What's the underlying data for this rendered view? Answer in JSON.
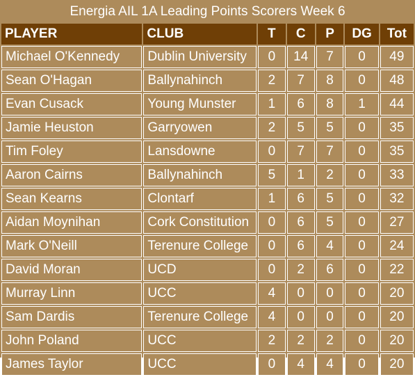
{
  "title": "Energia AIL 1A Leading Points Scorers Week 6",
  "headers": {
    "player": "PLAYER",
    "club": "CLUB",
    "t": "T",
    "c": "C",
    "p": "P",
    "dg": "DG",
    "tot": "Tot"
  },
  "rows": [
    {
      "player": "Michael O'Kennedy",
      "club": "Dublin University",
      "t": "0",
      "c": "14",
      "p": "7",
      "dg": "0",
      "tot": "49"
    },
    {
      "player": "Sean O'Hagan",
      "club": "Ballynahinch",
      "t": "2",
      "c": "7",
      "p": "8",
      "dg": "0",
      "tot": "48"
    },
    {
      "player": "Evan Cusack",
      "club": "Young Munster",
      "t": "1",
      "c": "6",
      "p": "8",
      "dg": "1",
      "tot": "44"
    },
    {
      "player": "Jamie Heuston",
      "club": "Garryowen",
      "t": "2",
      "c": "5",
      "p": "5",
      "dg": "0",
      "tot": "35"
    },
    {
      "player": "Tim Foley",
      "club": "Lansdowne",
      "t": "0",
      "c": "7",
      "p": "7",
      "dg": "0",
      "tot": "35"
    },
    {
      "player": "Aaron Cairns",
      "club": "Ballynahinch",
      "t": "5",
      "c": "1",
      "p": "2",
      "dg": "0",
      "tot": "33"
    },
    {
      "player": "Sean Kearns",
      "club": "Clontarf",
      "t": "1",
      "c": "6",
      "p": "5",
      "dg": "0",
      "tot": "32"
    },
    {
      "player": "Aidan Moynihan",
      "club": "Cork Constitution",
      "t": "0",
      "c": "6",
      "p": "5",
      "dg": "0",
      "tot": "27"
    },
    {
      "player": "Mark O'Neill",
      "club": "Terenure College",
      "t": "0",
      "c": "6",
      "p": "4",
      "dg": "0",
      "tot": "24"
    },
    {
      "player": "David Moran",
      "club": "UCD",
      "t": "0",
      "c": "2",
      "p": "6",
      "dg": "0",
      "tot": "22"
    },
    {
      "player": "Murray Linn",
      "club": "UCC",
      "t": "4",
      "c": "0",
      "p": "0",
      "dg": "0",
      "tot": "20"
    },
    {
      "player": "Sam Dardis",
      "club": "Terenure College",
      "t": "4",
      "c": "0",
      "p": "0",
      "dg": "0",
      "tot": "20"
    },
    {
      "player": "John Poland",
      "club": "UCC",
      "t": "2",
      "c": "2",
      "p": "2",
      "dg": "0",
      "tot": "20"
    },
    {
      "player": "James Taylor",
      "club": "UCC",
      "t": "0",
      "c": "4",
      "p": "4",
      "dg": "0",
      "tot": "20"
    }
  ],
  "colors": {
    "background": "#ad8b5b",
    "header": "#6f3f06",
    "text": "#ffffff"
  }
}
